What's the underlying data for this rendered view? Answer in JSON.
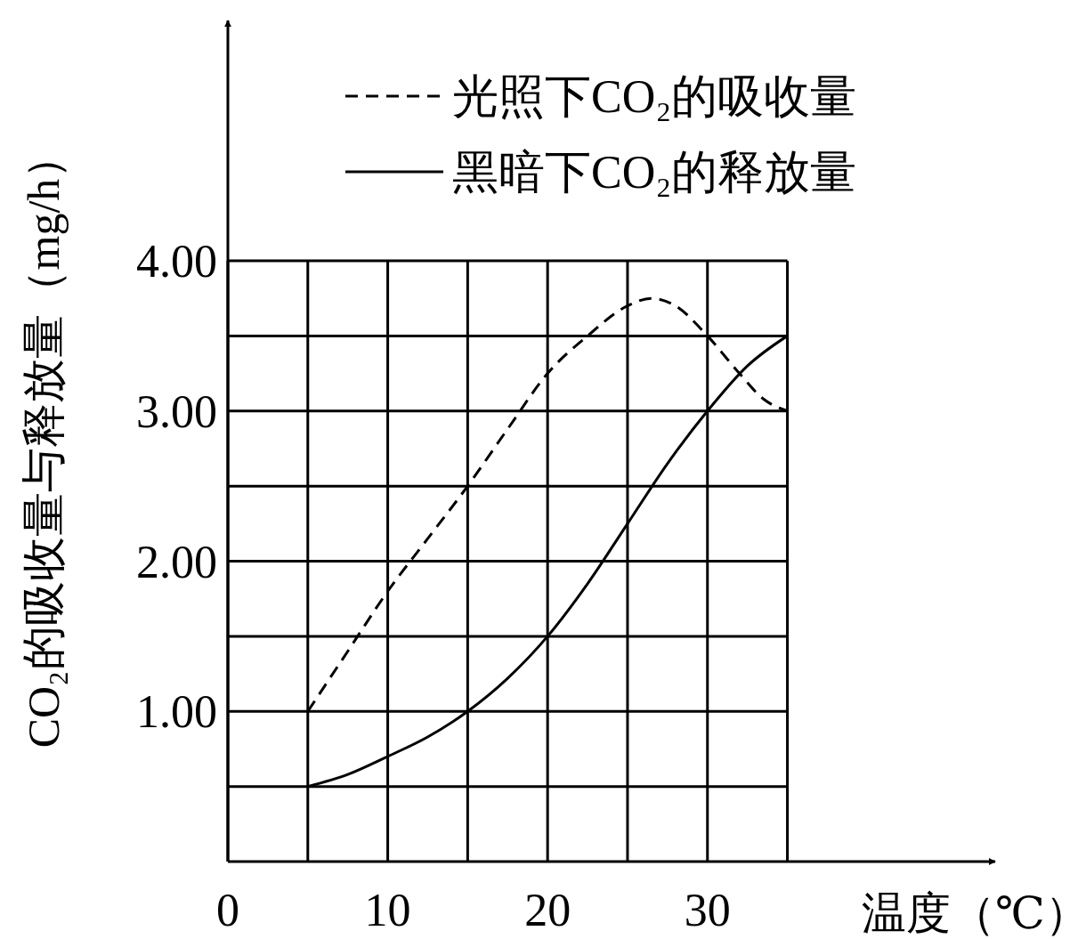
{
  "chart_data": {
    "type": "line",
    "xlabel": "温度（℃）",
    "ylabel": "CO₂的吸收量与释放量（mg/h）",
    "xlim": [
      0,
      48
    ],
    "ylim": [
      0,
      5.6
    ],
    "xticks": [
      0,
      {
        "value": 5,
        "label": null
      },
      10,
      {
        "value": 15,
        "label": null
      },
      20,
      {
        "value": 25,
        "label": null
      },
      30,
      {
        "value": 35,
        "label": null
      }
    ],
    "yticks": [
      {
        "value": 0.5,
        "label": null
      },
      {
        "value": 1,
        "label": "1.00"
      },
      {
        "value": 1.5,
        "label": null
      },
      {
        "value": 2,
        "label": "2.00"
      },
      {
        "value": 2.5,
        "label": null
      },
      {
        "value": 3,
        "label": "3.00"
      },
      {
        "value": 3.5,
        "label": null
      },
      {
        "value": 4,
        "label": "4.00"
      }
    ],
    "grid": true,
    "legend": "top right",
    "series": [
      {
        "name": "光照下CO₂的吸收量",
        "color": "#000000",
        "line_style": "dashed",
        "x": [
          5,
          7.5,
          10,
          12.5,
          15,
          17.5,
          20,
          22.5,
          25,
          26.5,
          28,
          30,
          32,
          33.5,
          35
        ],
        "values": [
          1.0,
          1.4,
          1.8,
          2.15,
          2.5,
          2.88,
          3.25,
          3.5,
          3.7,
          3.75,
          3.7,
          3.5,
          3.25,
          3.08,
          3.0
        ]
      },
      {
        "name": "黑暗下CO₂的释放量",
        "color": "#000000",
        "line_style": "solid",
        "x": [
          5,
          7.5,
          10,
          12.5,
          15,
          17.5,
          20,
          22.5,
          25,
          27.5,
          30,
          32.5,
          35
        ],
        "values": [
          0.5,
          0.58,
          0.7,
          0.83,
          1.0,
          1.22,
          1.5,
          1.85,
          2.25,
          2.65,
          3.0,
          3.3,
          3.5
        ]
      }
    ]
  }
}
